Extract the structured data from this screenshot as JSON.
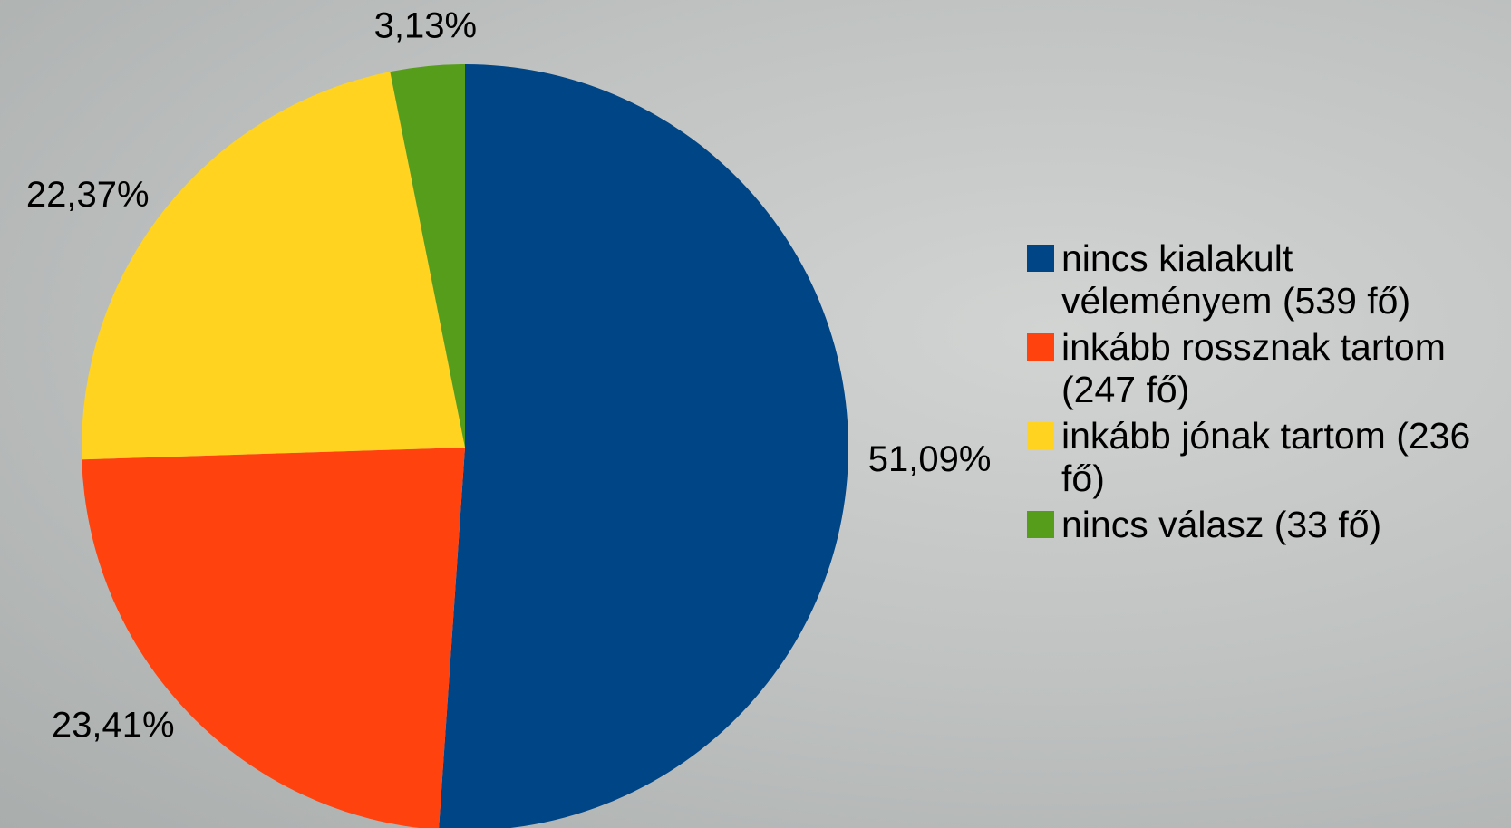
{
  "chart_data": {
    "type": "pie",
    "categories": [
      "nincs kialakult véleményem (539 fő)",
      "inkább rossznak tartom (247 fő)",
      "inkább jónak tartom (236 fő)",
      "nincs válasz (33 fő)"
    ],
    "values": [
      51.09,
      23.41,
      22.37,
      3.13
    ],
    "value_labels": [
      "51,09%",
      "23,41%",
      "22,37%",
      "3,13%"
    ],
    "colors": [
      "#004586",
      "#ff420e",
      "#ffd320",
      "#579d1c"
    ],
    "legend": "right"
  }
}
